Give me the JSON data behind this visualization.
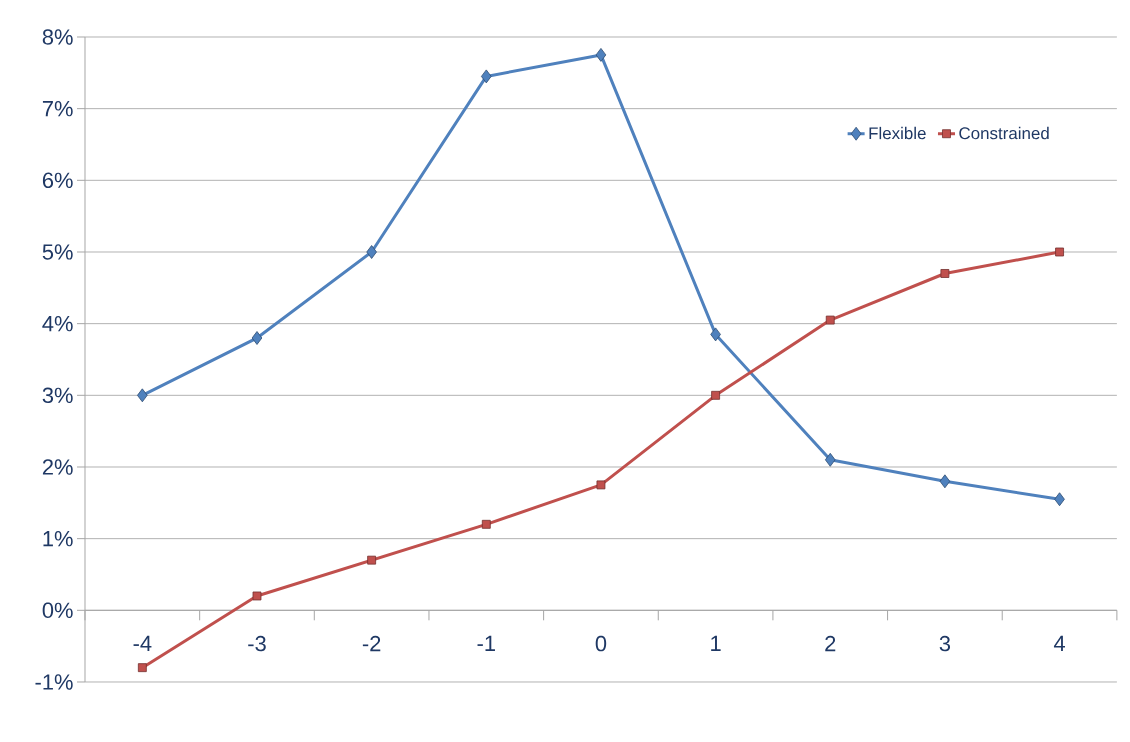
{
  "chart_data": {
    "type": "line",
    "categories": [
      "-4",
      "-3",
      "-2",
      "-1",
      "0",
      "1",
      "2",
      "3",
      "4"
    ],
    "series": [
      {
        "name": "Flexible",
        "color": "#4f81bd",
        "marker": "diamond",
        "values": [
          3.0,
          3.8,
          5.0,
          7.45,
          7.75,
          3.85,
          2.1,
          1.8,
          1.55
        ]
      },
      {
        "name": "Constrained",
        "color": "#c0504d",
        "marker": "square",
        "values": [
          -0.8,
          0.2,
          0.7,
          1.2,
          1.75,
          3.0,
          4.05,
          4.7,
          5.0
        ]
      }
    ],
    "ylim": [
      -1,
      8
    ],
    "yticks": [
      {
        "value": -1,
        "label": "-1%"
      },
      {
        "value": 0,
        "label": "0%"
      },
      {
        "value": 1,
        "label": "1%"
      },
      {
        "value": 2,
        "label": "2%"
      },
      {
        "value": 3,
        "label": "3%"
      },
      {
        "value": 4,
        "label": "4%"
      },
      {
        "value": 5,
        "label": "5%"
      },
      {
        "value": 6,
        "label": "6%"
      },
      {
        "value": 7,
        "label": "7%"
      },
      {
        "value": 8,
        "label": "8%"
      }
    ],
    "grid": "y",
    "legend": "top right"
  }
}
